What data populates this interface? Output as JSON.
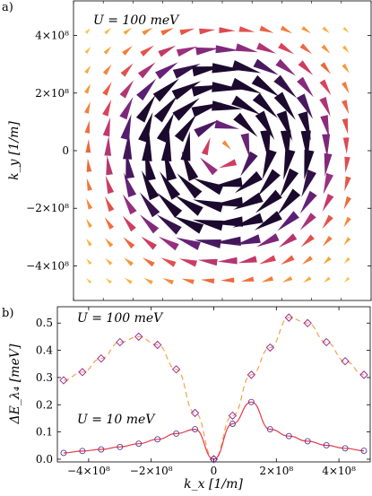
{
  "panel_labels": [
    "a)",
    "b)"
  ],
  "chart_data": [
    {
      "type": "quiver",
      "panel": "a)",
      "annotation": "U = 100 meV",
      "xlim": [
        -500000000.0,
        500000000.0
      ],
      "ylim": [
        -520000000.0,
        520000000.0
      ],
      "y_ticks": [
        {
          "value": 400000000.0,
          "label": "4×10⁸"
        },
        {
          "value": 200000000.0,
          "label": "2×10⁸"
        },
        {
          "value": 0,
          "label": "0"
        },
        {
          "value": -200000000.0,
          "label": "−2×10⁸"
        },
        {
          "value": -400000000.0,
          "label": "−4×10⁸"
        }
      ],
      "ylabel": "k_y [1/m]",
      "grid_start": -450000000.0,
      "grid_step": 66700000.0,
      "grid_count": 14,
      "color_scale": [
        "#ffd24a",
        "#f8a43a",
        "#ef6a3c",
        "#d63f5c",
        "#9a2f7f",
        "#5a1f75",
        "#1c0a2e"
      ],
      "max_magnitude_radius": 280000000.0,
      "arrows_count": 196
    },
    {
      "type": "scatter_line",
      "panel": "b)",
      "xlim": [
        -500000000.0,
        500000000.0
      ],
      "ylim": [
        -0.01,
        0.56
      ],
      "xlabel": "k_x [1/m]",
      "ylabel": "ΔE_λ₄ [meV]",
      "x_ticks": [
        {
          "value": -400000000.0,
          "label": "−4×10⁸"
        },
        {
          "value": -200000000.0,
          "label": "−2×10⁸"
        },
        {
          "value": 0,
          "label": "0"
        },
        {
          "value": 200000000.0,
          "label": "2×10⁸"
        },
        {
          "value": 400000000.0,
          "label": "4×10⁸"
        }
      ],
      "y_ticks": [
        {
          "value": 0.0,
          "label": "0.0"
        },
        {
          "value": 0.1,
          "label": "0.1"
        },
        {
          "value": 0.2,
          "label": "0.2"
        },
        {
          "value": 0.3,
          "label": "0.3"
        },
        {
          "value": 0.4,
          "label": "0.4"
        },
        {
          "value": 0.5,
          "label": "0.5"
        }
      ],
      "series": [
        {
          "name": "U = 100 meV",
          "marker": "diamond",
          "line_style": "dashed",
          "color": "#f6a24c",
          "marker_color": "#9a2f9a",
          "points": [
            [
              -480000000.0,
              0.29
            ],
            [
              -420000000.0,
              0.32
            ],
            [
              -360000000.0,
              0.37
            ],
            [
              -300000000.0,
              0.43
            ],
            [
              -240000000.0,
              0.45
            ],
            [
              -180000000.0,
              0.42
            ],
            [
              -120000000.0,
              0.33
            ],
            [
              -60000000.0,
              0.17
            ],
            [
              0.0,
              0.0
            ],
            [
              60000000.0,
              0.16
            ],
            [
              120000000.0,
              0.31
            ],
            [
              180000000.0,
              0.41
            ],
            [
              240000000.0,
              0.52
            ],
            [
              300000000.0,
              0.5
            ],
            [
              360000000.0,
              0.43
            ],
            [
              420000000.0,
              0.36
            ],
            [
              480000000.0,
              0.31
            ]
          ]
        },
        {
          "name": "U = 10 meV",
          "marker": "circle",
          "line_style": "solid",
          "color": "#e63946",
          "marker_color": "#5a3a9a",
          "points": [
            [
              -480000000.0,
              0.023
            ],
            [
              -420000000.0,
              0.03
            ],
            [
              -360000000.0,
              0.036
            ],
            [
              -300000000.0,
              0.045
            ],
            [
              -240000000.0,
              0.057
            ],
            [
              -180000000.0,
              0.073
            ],
            [
              -120000000.0,
              0.094
            ],
            [
              -60000000.0,
              0.11
            ],
            [
              0.0,
              0.0
            ],
            [
              60000000.0,
              0.13
            ],
            [
              120000000.0,
              0.21
            ],
            [
              180000000.0,
              0.11
            ],
            [
              240000000.0,
              0.085
            ],
            [
              300000000.0,
              0.066
            ],
            [
              360000000.0,
              0.051
            ],
            [
              420000000.0,
              0.04
            ],
            [
              480000000.0,
              0.031
            ]
          ]
        }
      ],
      "annotations": [
        "U = 100 meV",
        "U = 10 meV"
      ]
    }
  ]
}
